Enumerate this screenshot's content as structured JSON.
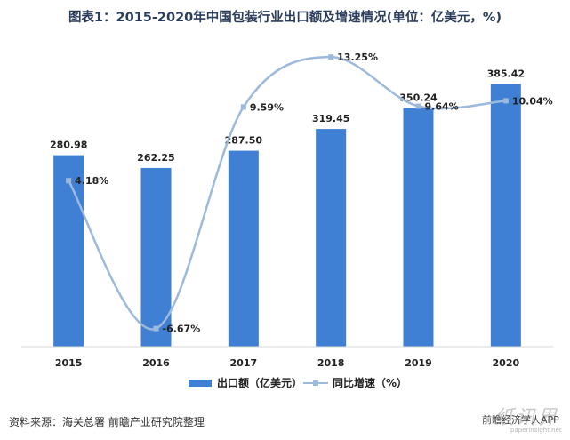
{
  "header": {
    "title": "图表1：2015-2020年中国包装行业出口额及增速情况(单位：亿美元，%)"
  },
  "chart_data": {
    "type": "bar+line",
    "categories": [
      "2015",
      "2016",
      "2017",
      "2018",
      "2019",
      "2020"
    ],
    "series": [
      {
        "name": "出口额（亿美元）",
        "type": "bar",
        "axis": "left",
        "values": [
          280.98,
          262.25,
          287.5,
          319.45,
          350.24,
          385.42
        ],
        "labels": [
          "280.98",
          "262.25",
          "287.50",
          "319.45",
          "350.24",
          "385.42"
        ],
        "color": "#3f7fd4"
      },
      {
        "name": "同比增速（%）",
        "type": "line",
        "axis": "right",
        "values": [
          4.18,
          -6.67,
          9.59,
          13.25,
          9.64,
          10.04
        ],
        "labels": [
          "4.18%",
          "-6.67%",
          "9.59%",
          "13.25%",
          "9.64%",
          "10.04%"
        ],
        "color": "#9db9dc"
      }
    ],
    "ylim_left": [
      0,
      450
    ],
    "ylim_right": [
      -8,
      14.5
    ],
    "grid": false,
    "legend_position": "bottom"
  },
  "footer": {
    "source": "资料来源：海关总署 前瞻产业研究院整理"
  },
  "watermark": {
    "text": "纸讯界",
    "app": "前瞻经济学人APP",
    "url": "paperinsight.net"
  }
}
